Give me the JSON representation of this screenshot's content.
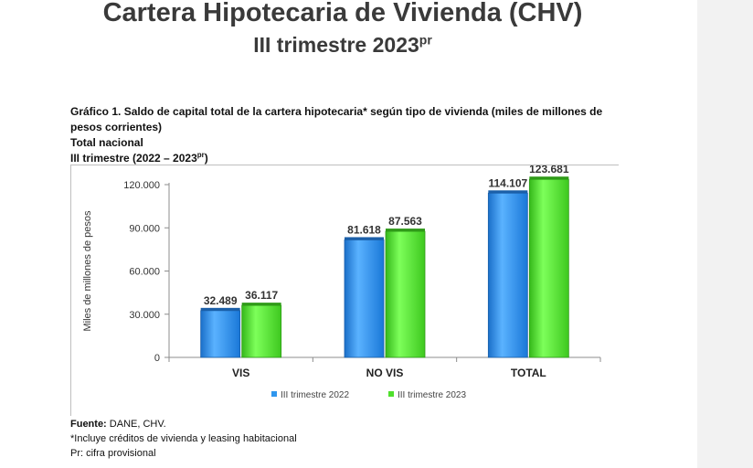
{
  "header": {
    "title": "Cartera Hipotecaria de Vivienda (CHV)",
    "subtitle_main": "III trimestre 2023",
    "subtitle_sup": "pr"
  },
  "caption": {
    "line1": "Gráfico 1. Saldo de capital total de la cartera hipotecaria* según tipo de vivienda (miles de millones de pesos corrientes)",
    "line2": "Total nacional",
    "line3_main": "III trimestre (2022 – 2023",
    "line3_sup": "pr",
    "line3_end": ")"
  },
  "chart_data": {
    "type": "bar",
    "categories": [
      "VIS",
      "NO VIS",
      "TOTAL"
    ],
    "series": [
      {
        "name": "III trimestre 2022",
        "values": [
          32489,
          81618,
          114107
        ],
        "labels": [
          "32.489",
          "81.618",
          "114.107"
        ],
        "color": "#2f96ee"
      },
      {
        "name": "III trimestre 2023",
        "values": [
          36117,
          87563,
          123681
        ],
        "labels": [
          "36.117",
          "87.563",
          "123.681"
        ],
        "color": "#4fe02c"
      }
    ],
    "ylabel": "Miles de  millones de pesos",
    "xlabel": "",
    "ylim": [
      0,
      120000
    ],
    "yticks": [
      0,
      30000,
      60000,
      90000,
      120000
    ],
    "ytick_labels": [
      "0",
      "30.000",
      "60.000",
      "90.000",
      "120.000"
    ],
    "grid": false,
    "legend_position": "bottom-center"
  },
  "notes": {
    "source_label": "Fuente:",
    "source_text": " DANE, CHV.",
    "footnote1": "*Incluye créditos de vivienda y leasing habitacional",
    "footnote2": "Pr: cifra provisional"
  }
}
